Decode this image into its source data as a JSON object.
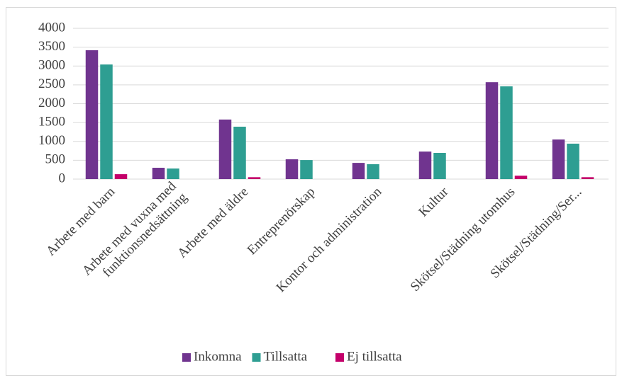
{
  "chart_data": {
    "type": "bar",
    "categories": [
      "Arbete med barn",
      "Arbete med vuxna med funktionsnedsättning",
      "Arbete med äldre",
      "Entreprenörskap",
      "Kontor och administration",
      "Kultur",
      "Skötsel/Städning utomhus",
      "Skötsel/Städning/Ser..."
    ],
    "series": [
      {
        "name": "Inkomna",
        "color": "#70348f",
        "values": [
          3420,
          300,
          1580,
          525,
          430,
          730,
          2570,
          1050
        ]
      },
      {
        "name": "Tillsatta",
        "color": "#2e9e92",
        "values": [
          3040,
          280,
          1390,
          505,
          395,
          695,
          2460,
          940
        ]
      },
      {
        "name": "Ej tillsatta",
        "color": "#c4006a",
        "values": [
          130,
          0,
          50,
          0,
          0,
          0,
          90,
          50
        ]
      }
    ],
    "ylim": [
      0,
      4000
    ],
    "yticks": [
      0,
      500,
      1000,
      1500,
      2000,
      2500,
      3000,
      3500,
      4000
    ],
    "grid": true,
    "legend": "bottom"
  }
}
